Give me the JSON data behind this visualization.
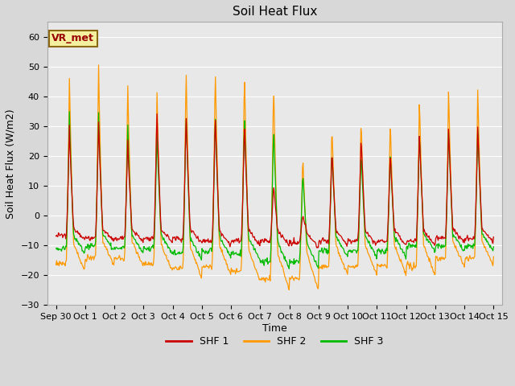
{
  "title": "Soil Heat Flux",
  "ylabel": "Soil Heat Flux (W/m2)",
  "xlabel": "Time",
  "ylim": [
    -30,
    65
  ],
  "yticks": [
    -30,
    -20,
    -10,
    0,
    10,
    20,
    30,
    40,
    50,
    60
  ],
  "xtick_labels": [
    "Sep 30",
    "Oct 1",
    "Oct 2",
    "Oct 3",
    "Oct 4",
    "Oct 5",
    "Oct 6",
    "Oct 7",
    "Oct 8",
    "Oct 9",
    "Oct 10",
    "Oct 11",
    "Oct 12",
    "Oct 13",
    "Oct 14",
    "Oct 15"
  ],
  "color_shf1": "#cc0000",
  "color_shf2": "#ff9900",
  "color_shf3": "#00bb00",
  "legend_labels": [
    "SHF 1",
    "SHF 2",
    "SHF 3"
  ],
  "annotation_text": "VR_met",
  "fig_bg": "#d8d8d8",
  "plot_bg": "#e8e8e8",
  "grid_color": "#ffffff",
  "linewidth": 0.9,
  "days": 15,
  "n_points_per_day": 48
}
